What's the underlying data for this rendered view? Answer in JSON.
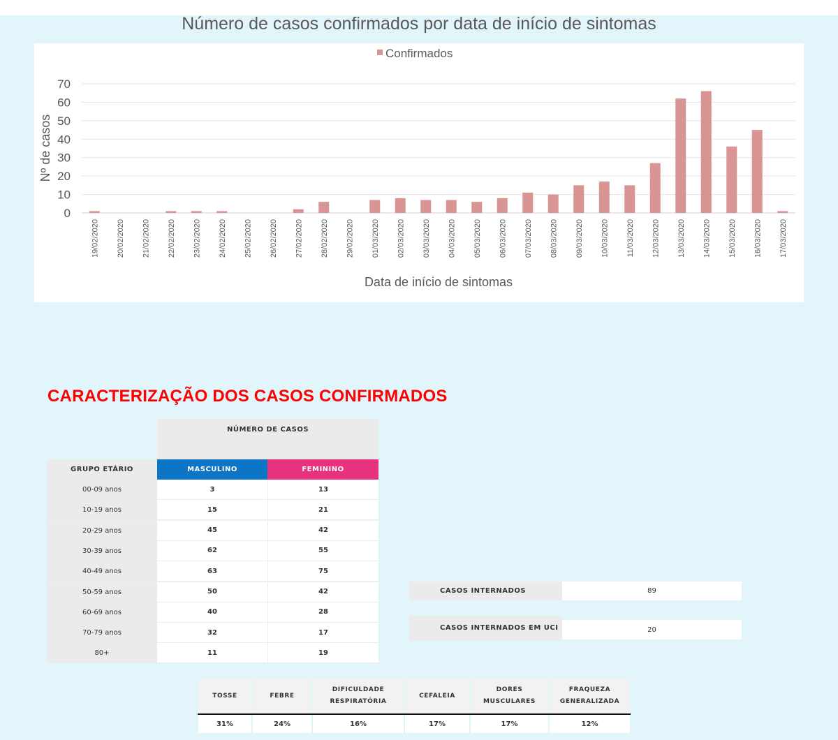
{
  "chart_data": {
    "type": "bar",
    "title": "Número de casos confirmados por data de início de sintomas",
    "xlabel": "Data de início de sintomas",
    "ylabel": "Nº de casos",
    "legend": "top-center",
    "ylim": [
      0,
      70
    ],
    "yticks": [
      "0",
      "10",
      "20",
      "30",
      "40",
      "50",
      "60",
      "70"
    ],
    "grid": true,
    "categories": [
      "19/02/2020",
      "20/02/2020",
      "21/02/2020",
      "22/02/2020",
      "23/02/2020",
      "24/02/2020",
      "25/02/2020",
      "26/02/2020",
      "27/02/2020",
      "28/02/2020",
      "29/02/2020",
      "01/03/2020",
      "02/03/2020",
      "03/03/2020",
      "04/03/2020",
      "05/03/2020",
      "06/03/2020",
      "07/03/2020",
      "08/03/2020",
      "09/03/2020",
      "10/03/2020",
      "11/03/2020",
      "12/03/2020",
      "13/03/2020",
      "14/03/2020",
      "15/03/2020",
      "16/03/2020",
      "17/03/2020"
    ],
    "series": [
      {
        "name": "Confirmados",
        "color": "#d99594",
        "values": [
          1,
          0,
          0,
          1,
          1,
          1,
          0,
          0,
          2,
          6,
          0,
          7,
          8,
          7,
          7,
          6,
          8,
          11,
          10,
          15,
          17,
          15,
          27,
          62,
          66,
          36,
          45,
          1
        ]
      }
    ]
  },
  "section_title": "CARACTERIZAÇÃO DOS CASOS CONFIRMADOS",
  "age_table": {
    "top_header": "NÚMERO DE CASOS",
    "age_header": "GRUPO ETÁRIO",
    "male_header": "MASCULINO",
    "female_header": "FEMININO",
    "colors": {
      "male": "#0d75c5",
      "female": "#e8327d"
    },
    "rows": [
      {
        "age": "00-09 anos",
        "male": "3",
        "female": "13"
      },
      {
        "age": "10-19 anos",
        "male": "15",
        "female": "21"
      },
      {
        "age": "20-29 anos",
        "male": "45",
        "female": "42"
      },
      {
        "age": "30-39 anos",
        "male": "62",
        "female": "55"
      },
      {
        "age": "40-49 anos",
        "male": "63",
        "female": "75"
      },
      {
        "age": "50-59 anos",
        "male": "50",
        "female": "42"
      },
      {
        "age": "60-69 anos",
        "male": "40",
        "female": "28"
      },
      {
        "age": "70-79 anos",
        "male": "32",
        "female": "17"
      },
      {
        "age": "80+",
        "male": "11",
        "female": "19"
      }
    ]
  },
  "hospital": {
    "interned_label": "CASOS INTERNADOS",
    "interned_value": "89",
    "icu_label": "CASOS INTERNADOS EM UCI",
    "icu_value": "20"
  },
  "symptoms": [
    {
      "label": "TOSSE",
      "value": "31%"
    },
    {
      "label": "FEBRE",
      "value": "24%"
    },
    {
      "label": "DIFICULDADE RESPIRATÓRIA",
      "value": "16%"
    },
    {
      "label": "CEFALEIA",
      "value": "17%"
    },
    {
      "label": "DORES MUSCULARES",
      "value": "17%"
    },
    {
      "label": "FRAQUEZA GENERALIZADA",
      "value": "12%"
    }
  ]
}
